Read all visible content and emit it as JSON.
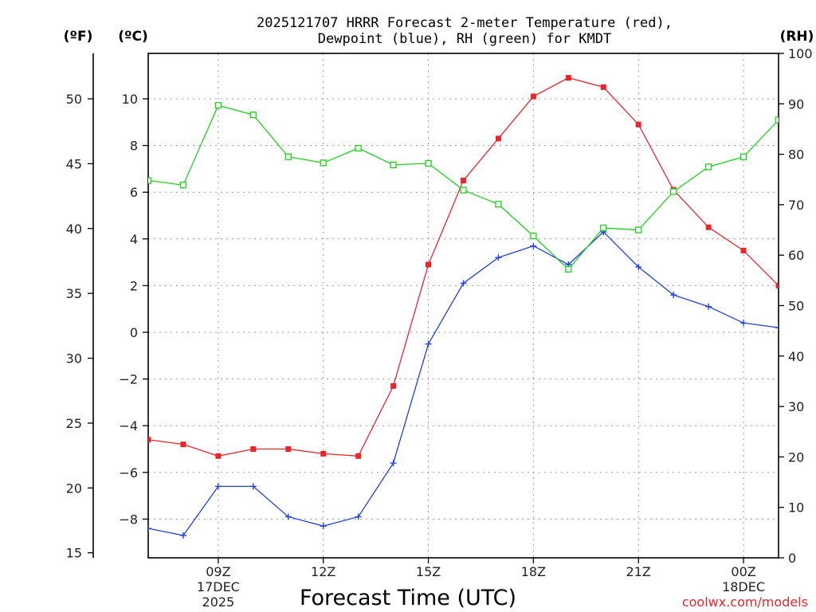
{
  "title": {
    "line1": "2025121707 HRRR Forecast 2-meter Temperature (red),",
    "line2": "Dewpoint (blue), RH (green) for KMDT"
  },
  "units": {
    "fahrenheit": "(ºF)",
    "celsius": "(ºC)",
    "rh": "(RH)"
  },
  "credit": "coolwx.com/models",
  "colors": {
    "temperature": "#e8262b",
    "dewpoint": "#2341e0",
    "rh": "#1fd11f"
  },
  "chart_data": {
    "type": "line",
    "title": "2025121707 HRRR Forecast 2-meter Temperature (red), Dewpoint (blue), RH (green) for KMDT",
    "xlabel": "Forecast Time (UTC)",
    "x_hours": [
      7,
      8,
      9,
      10,
      11,
      12,
      13,
      14,
      15,
      16,
      17,
      18,
      19,
      20,
      21,
      22,
      23,
      24,
      25
    ],
    "xlim": [
      7,
      25
    ],
    "x_ticks": [
      {
        "hour": 9,
        "label": "09Z",
        "sub1": "17DEC",
        "sub2": "2025"
      },
      {
        "hour": 12,
        "label": "12Z",
        "sub1": "",
        "sub2": ""
      },
      {
        "hour": 15,
        "label": "15Z",
        "sub1": "",
        "sub2": ""
      },
      {
        "hour": 18,
        "label": "18Z",
        "sub1": "",
        "sub2": ""
      },
      {
        "hour": 21,
        "label": "21Z",
        "sub1": "",
        "sub2": ""
      },
      {
        "hour": 24,
        "label": "00Z",
        "sub1": "18DEC",
        "sub2": ""
      }
    ],
    "y_celsius": {
      "ylim": [
        -9.3,
        12
      ],
      "ticks": [
        10,
        8,
        6,
        4,
        2,
        0,
        -2,
        -4,
        -6,
        -8
      ],
      "tick_labels": [
        "10",
        "8",
        "6",
        "4",
        "2",
        "0",
        "−2",
        "−4",
        "−6",
        "−8"
      ]
    },
    "y_fahrenheit": {
      "ticks": [
        50,
        45,
        40,
        35,
        30,
        25,
        20,
        15
      ],
      "tick_labels": [
        "50",
        "45",
        "40",
        "35",
        "30",
        "25",
        "20",
        "15"
      ]
    },
    "y_rh": {
      "ylim": [
        0,
        100
      ],
      "ticks": [
        100,
        90,
        80,
        70,
        60,
        50,
        40,
        30,
        20,
        10,
        0
      ],
      "tick_labels": [
        "100",
        "90",
        "80",
        "70",
        "60",
        "50",
        "40",
        "30",
        "20",
        "10",
        "0"
      ]
    },
    "series": [
      {
        "name": "Temperature",
        "axis": "celsius",
        "marker": "filled-square",
        "values": [
          -4.6,
          -4.8,
          -5.3,
          -5.0,
          -5.0,
          -5.2,
          -5.3,
          -2.3,
          2.9,
          6.5,
          8.3,
          10.1,
          10.9,
          10.5,
          8.9,
          6.1,
          4.5,
          3.5,
          2.0
        ]
      },
      {
        "name": "Dewpoint",
        "axis": "celsius",
        "marker": "plus",
        "values": [
          -8.4,
          -8.7,
          -6.6,
          -6.6,
          -7.9,
          -8.3,
          -7.9,
          -5.6,
          -0.5,
          2.1,
          3.2,
          3.7,
          2.9,
          4.3,
          2.8,
          1.6,
          1.1,
          0.4,
          0.2
        ]
      },
      {
        "name": "RH",
        "axis": "rh",
        "marker": "open-square",
        "values": [
          74.8,
          73.9,
          89.7,
          87.8,
          79.5,
          78.3,
          81.2,
          77.9,
          78.2,
          72.9,
          70.1,
          63.8,
          57.2,
          65.4,
          65.0,
          72.6,
          77.5,
          79.5,
          86.8
        ]
      }
    ]
  }
}
